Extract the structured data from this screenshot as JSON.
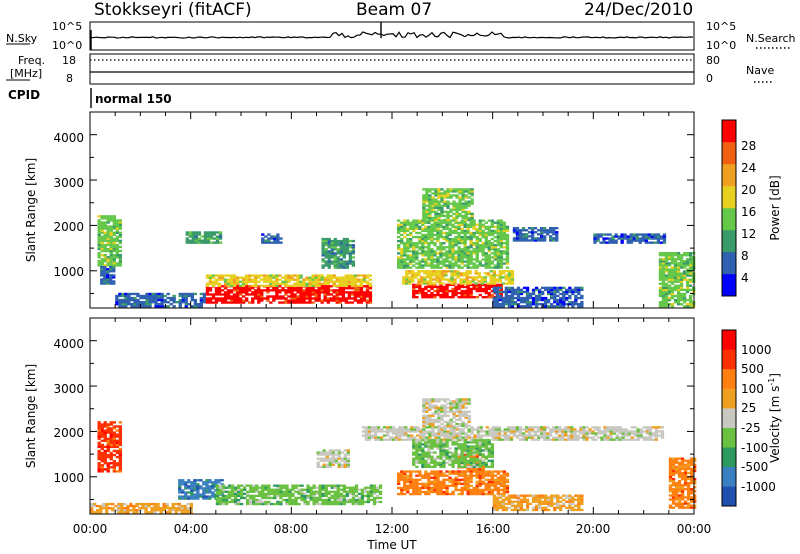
{
  "header": {
    "station": "Stokkseyri (fitACF)",
    "beam": "Beam 07",
    "date": "24/Dec/2010"
  },
  "top_panels": {
    "nsky_label": "N.Sky",
    "nsearch_label": "N.Search",
    "nsky_ticks": [
      "10^5",
      "10^0"
    ],
    "nsearch_ticks": [
      "10^5",
      "10^0"
    ],
    "freq_label_1": "Freq.",
    "freq_label_2": "[MHz]",
    "freq_ticks": [
      "18",
      "8"
    ],
    "nave_label": "Nave",
    "nave_ticks": [
      "80",
      "0"
    ],
    "cpid_label": "CPID",
    "cpid_value": "normal 150"
  },
  "colors": {
    "power": [
      "#0000ff",
      "#3060b0",
      "#3a9a6a",
      "#66c84a",
      "#e8d020",
      "#f0a020",
      "#f06010",
      "#ff0000"
    ],
    "velocity": [
      "#2050b0",
      "#3a80c0",
      "#2e9a60",
      "#6ac040",
      "#c8c8c0",
      "#f0a020",
      "#ff8010",
      "#ff3000",
      "#ff0000"
    ]
  },
  "chart_data": [
    {
      "type": "heatmap",
      "title": "Power",
      "xlabel": "Time UT",
      "ylabel": "Slant Range [km]",
      "x_ticks": [
        "00:00",
        "04:00",
        "08:00",
        "12:00",
        "16:00",
        "20:00",
        "00:00"
      ],
      "y_ticks": [
        "1000",
        "2000",
        "3000",
        "4000"
      ],
      "ylim": [
        180,
        4500
      ],
      "colorbar_label": "Power [dB]",
      "colorbar_ticks": [
        "4",
        "8",
        "12",
        "16",
        "20",
        "24",
        "28"
      ],
      "regions": [
        {
          "t0": 0.3,
          "t1": 1.2,
          "r0": 1100,
          "r1": 2200,
          "level": 3
        },
        {
          "t0": 0.4,
          "t1": 1.0,
          "r0": 700,
          "r1": 1100,
          "level": 1
        },
        {
          "t0": 1.0,
          "t1": 4.5,
          "r0": 200,
          "r1": 500,
          "level": 1
        },
        {
          "t0": 4.6,
          "t1": 11.1,
          "r0": 280,
          "r1": 650,
          "level": 7
        },
        {
          "t0": 4.6,
          "t1": 11.1,
          "r0": 650,
          "r1": 900,
          "level": 4
        },
        {
          "t0": 3.8,
          "t1": 5.2,
          "r0": 1600,
          "r1": 1850,
          "level": 2
        },
        {
          "t0": 6.8,
          "t1": 7.6,
          "r0": 1600,
          "r1": 1800,
          "level": 1
        },
        {
          "t0": 9.2,
          "t1": 10.4,
          "r0": 1050,
          "r1": 1700,
          "level": 2
        },
        {
          "t0": 12.8,
          "t1": 16.3,
          "r0": 400,
          "r1": 700,
          "level": 7
        },
        {
          "t0": 12.4,
          "t1": 16.8,
          "r0": 700,
          "r1": 1000,
          "level": 4
        },
        {
          "t0": 12.2,
          "t1": 16.6,
          "r0": 1050,
          "r1": 2100,
          "level": 3
        },
        {
          "t0": 13.2,
          "t1": 15.2,
          "r0": 2100,
          "r1": 2800,
          "level": 3
        },
        {
          "t0": 16.0,
          "t1": 19.5,
          "r0": 200,
          "r1": 650,
          "level": 1
        },
        {
          "t0": 16.8,
          "t1": 18.6,
          "r0": 1650,
          "r1": 1950,
          "level": 1
        },
        {
          "t0": 20.0,
          "t1": 22.8,
          "r0": 1600,
          "r1": 1800,
          "level": 1
        },
        {
          "t0": 22.6,
          "t1": 24.0,
          "r0": 200,
          "r1": 1400,
          "level": 3
        }
      ]
    },
    {
      "type": "heatmap",
      "title": "Velocity",
      "xlabel": "Time UT",
      "ylabel": "Slant Range [km]",
      "x_ticks": [
        "00:00",
        "04:00",
        "08:00",
        "12:00",
        "16:00",
        "20:00",
        "00:00"
      ],
      "y_ticks": [
        "1000",
        "2000",
        "3000",
        "4000"
      ],
      "ylim": [
        180,
        4500
      ],
      "colorbar_label": "Velocity [m s^-1]",
      "colorbar_ticks": [
        "1000",
        "500",
        "100",
        "25",
        "-25",
        "-100",
        "-500",
        "-1000"
      ],
      "regions": [
        {
          "t0": 0.3,
          "t1": 1.2,
          "r0": 1100,
          "r1": 2200,
          "level": 7
        },
        {
          "t0": 0.0,
          "t1": 4.0,
          "r0": 200,
          "r1": 420,
          "level": 5
        },
        {
          "t0": 3.5,
          "t1": 5.3,
          "r0": 500,
          "r1": 950,
          "level": 1
        },
        {
          "t0": 5.0,
          "t1": 11.5,
          "r0": 380,
          "r1": 800,
          "level": 3
        },
        {
          "t0": 10.8,
          "t1": 22.8,
          "r0": 1800,
          "r1": 2100,
          "level": 4
        },
        {
          "t0": 9.0,
          "t1": 10.2,
          "r0": 1200,
          "r1": 1600,
          "level": 4
        },
        {
          "t0": 12.2,
          "t1": 16.6,
          "r0": 600,
          "r1": 1100,
          "level": 6
        },
        {
          "t0": 14.6,
          "t1": 15.6,
          "r0": 1100,
          "r1": 1500,
          "level": 6
        },
        {
          "t0": 12.8,
          "t1": 16.0,
          "r0": 1200,
          "r1": 1800,
          "level": 3
        },
        {
          "t0": 13.2,
          "t1": 15.0,
          "r0": 2100,
          "r1": 2700,
          "level": 4
        },
        {
          "t0": 16.0,
          "t1": 19.5,
          "r0": 250,
          "r1": 600,
          "level": 5
        },
        {
          "t0": 23.0,
          "t1": 24.0,
          "r0": 300,
          "r1": 1400,
          "level": 6
        }
      ]
    }
  ]
}
